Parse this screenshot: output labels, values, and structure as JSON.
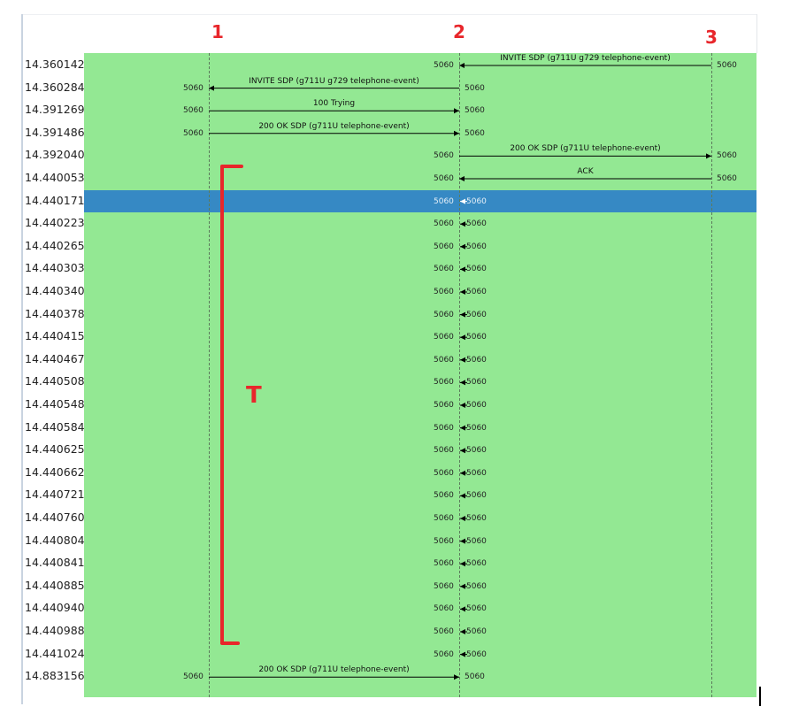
{
  "nodes": [
    {
      "label": "1"
    },
    {
      "label": "2"
    },
    {
      "label": "3"
    }
  ],
  "annotation": {
    "bracket_label": "T",
    "color": "#e8262b"
  },
  "colors": {
    "background": "#93e893",
    "selected": "#3689c4"
  },
  "selected_row": 6,
  "rows": [
    {
      "time": "14.360142",
      "from": 3,
      "to": 2,
      "label": "INVITE SDP (g711U g729 telephone-event)",
      "from_port": "5060",
      "to_port": "5060"
    },
    {
      "time": "14.360284",
      "from": 2,
      "to": 1,
      "label": "INVITE SDP (g711U g729 telephone-event)",
      "from_port": "5060",
      "to_port": "5060"
    },
    {
      "time": "14.391269",
      "from": 1,
      "to": 2,
      "label": "100 Trying",
      "from_port": "5060",
      "to_port": "5060"
    },
    {
      "time": "14.391486",
      "from": 1,
      "to": 2,
      "label": "200 OK SDP (g711U telephone-event)",
      "from_port": "5060",
      "to_port": "5060"
    },
    {
      "time": "14.392040",
      "from": 2,
      "to": 3,
      "label": "200 OK SDP (g711U telephone-event)",
      "from_port": "5060",
      "to_port": "5060"
    },
    {
      "time": "14.440053",
      "from": 3,
      "to": 2,
      "label": "ACK",
      "from_port": "5060",
      "to_port": "5060"
    },
    {
      "time": "14.440171",
      "from": 2,
      "to": 2,
      "label": "",
      "from_port": "5060",
      "to_port": "5060"
    },
    {
      "time": "14.440223",
      "from": 2,
      "to": 2,
      "label": "",
      "from_port": "5060",
      "to_port": "5060"
    },
    {
      "time": "14.440265",
      "from": 2,
      "to": 2,
      "label": "",
      "from_port": "5060",
      "to_port": "5060"
    },
    {
      "time": "14.440303",
      "from": 2,
      "to": 2,
      "label": "",
      "from_port": "5060",
      "to_port": "5060"
    },
    {
      "time": "14.440340",
      "from": 2,
      "to": 2,
      "label": "",
      "from_port": "5060",
      "to_port": "5060"
    },
    {
      "time": "14.440378",
      "from": 2,
      "to": 2,
      "label": "",
      "from_port": "5060",
      "to_port": "5060"
    },
    {
      "time": "14.440415",
      "from": 2,
      "to": 2,
      "label": "",
      "from_port": "5060",
      "to_port": "5060"
    },
    {
      "time": "14.440467",
      "from": 2,
      "to": 2,
      "label": "",
      "from_port": "5060",
      "to_port": "5060"
    },
    {
      "time": "14.440508",
      "from": 2,
      "to": 2,
      "label": "",
      "from_port": "5060",
      "to_port": "5060"
    },
    {
      "time": "14.440548",
      "from": 2,
      "to": 2,
      "label": "",
      "from_port": "5060",
      "to_port": "5060"
    },
    {
      "time": "14.440584",
      "from": 2,
      "to": 2,
      "label": "",
      "from_port": "5060",
      "to_port": "5060"
    },
    {
      "time": "14.440625",
      "from": 2,
      "to": 2,
      "label": "",
      "from_port": "5060",
      "to_port": "5060"
    },
    {
      "time": "14.440662",
      "from": 2,
      "to": 2,
      "label": "",
      "from_port": "5060",
      "to_port": "5060"
    },
    {
      "time": "14.440721",
      "from": 2,
      "to": 2,
      "label": "",
      "from_port": "5060",
      "to_port": "5060"
    },
    {
      "time": "14.440760",
      "from": 2,
      "to": 2,
      "label": "",
      "from_port": "5060",
      "to_port": "5060"
    },
    {
      "time": "14.440804",
      "from": 2,
      "to": 2,
      "label": "",
      "from_port": "5060",
      "to_port": "5060"
    },
    {
      "time": "14.440841",
      "from": 2,
      "to": 2,
      "label": "",
      "from_port": "5060",
      "to_port": "5060"
    },
    {
      "time": "14.440885",
      "from": 2,
      "to": 2,
      "label": "",
      "from_port": "5060",
      "to_port": "5060"
    },
    {
      "time": "14.440940",
      "from": 2,
      "to": 2,
      "label": "",
      "from_port": "5060",
      "to_port": "5060"
    },
    {
      "time": "14.440988",
      "from": 2,
      "to": 2,
      "label": "",
      "from_port": "5060",
      "to_port": "5060"
    },
    {
      "time": "14.441024",
      "from": 2,
      "to": 2,
      "label": "",
      "from_port": "5060",
      "to_port": "5060"
    },
    {
      "time": "14.883156",
      "from": 1,
      "to": 2,
      "label": "200 OK SDP (g711U telephone-event)",
      "from_port": "5060",
      "to_port": "5060"
    }
  ]
}
